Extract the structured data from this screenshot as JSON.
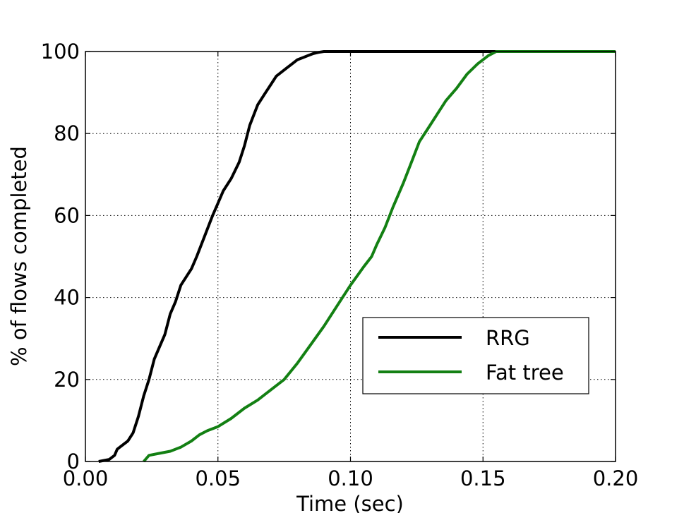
{
  "chart_data": {
    "type": "line",
    "title": "",
    "xlabel": "Time (sec)",
    "ylabel": "% of flows completed",
    "xlim": [
      0.0,
      0.2
    ],
    "ylim": [
      0,
      100
    ],
    "xticks": [
      0.0,
      0.05,
      0.1,
      0.15,
      0.2
    ],
    "xtick_labels": [
      "0.00",
      "0.05",
      "0.10",
      "0.15",
      "0.20"
    ],
    "yticks": [
      0,
      20,
      40,
      60,
      80,
      100
    ],
    "ytick_labels": [
      "0",
      "20",
      "40",
      "60",
      "80",
      "100"
    ],
    "grid": true,
    "legend_position": "lower-right",
    "series": [
      {
        "name": "RRG",
        "color": "#000000",
        "x": [
          0.005,
          0.009,
          0.011,
          0.012,
          0.013,
          0.016,
          0.018,
          0.02,
          0.022,
          0.024,
          0.026,
          0.028,
          0.03,
          0.032,
          0.034,
          0.036,
          0.038,
          0.04,
          0.042,
          0.045,
          0.048,
          0.05,
          0.052,
          0.055,
          0.058,
          0.06,
          0.062,
          0.065,
          0.068,
          0.07,
          0.072,
          0.074,
          0.076,
          0.078,
          0.08,
          0.082,
          0.084,
          0.086,
          0.088,
          0.09,
          0.092,
          0.094,
          0.2
        ],
        "values": [
          0,
          0.5,
          1.5,
          3,
          3.5,
          5,
          7,
          11,
          16,
          20,
          25,
          28,
          31,
          36,
          39,
          43,
          45,
          47,
          50,
          55,
          60,
          63,
          66,
          69,
          73,
          77,
          82,
          87,
          90,
          92,
          94,
          95,
          96,
          97,
          98,
          98.5,
          99,
          99.5,
          99.8,
          100,
          100,
          100,
          100
        ]
      },
      {
        "name": "Fat tree",
        "color": "#138013",
        "x": [
          0.022,
          0.024,
          0.028,
          0.032,
          0.036,
          0.04,
          0.043,
          0.046,
          0.05,
          0.055,
          0.06,
          0.065,
          0.07,
          0.075,
          0.08,
          0.085,
          0.09,
          0.095,
          0.1,
          0.105,
          0.108,
          0.11,
          0.113,
          0.116,
          0.12,
          0.123,
          0.126,
          0.13,
          0.133,
          0.136,
          0.14,
          0.144,
          0.148,
          0.152,
          0.155,
          0.2
        ],
        "values": [
          0,
          1.5,
          2,
          2.5,
          3.5,
          5,
          6.5,
          7.5,
          8.5,
          10.5,
          13,
          15,
          17.5,
          20,
          24,
          28.5,
          33,
          38,
          43,
          47.5,
          50,
          53,
          57,
          62,
          68,
          73,
          78,
          82,
          85,
          88,
          91,
          94.5,
          97,
          99,
          100,
          100
        ]
      }
    ]
  }
}
